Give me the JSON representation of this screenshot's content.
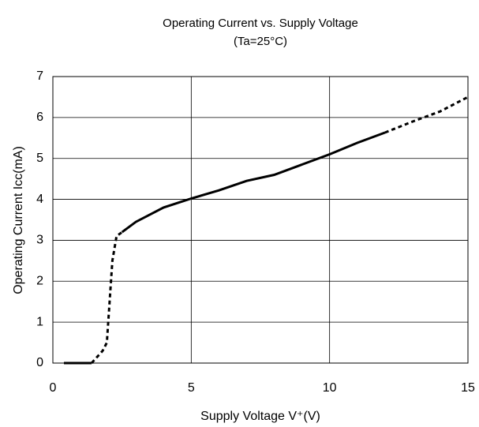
{
  "chart_data": {
    "type": "line",
    "title": "Operating Current vs. Supply Voltage",
    "subtitle": "(Ta=25°C)",
    "x_label": "Supply Voltage  V⁺(V)",
    "y_label": "Operating Current  Icc(mA)",
    "xlim": [
      0,
      15
    ],
    "xticks": [
      0,
      5,
      10,
      15
    ],
    "ylim": [
      0,
      7
    ],
    "yticks": [
      0,
      1,
      2,
      3,
      4,
      5,
      6,
      7
    ],
    "grid": true,
    "series": [
      {
        "color": "#000000",
        "dashed": false,
        "x": [
          0.4,
          1.4
        ],
        "values": [
          0,
          0
        ]
      },
      {
        "color": "#000000",
        "dashed": true,
        "x": [
          1.4,
          1.6,
          1.8,
          1.95,
          2.05,
          2.15,
          2.3,
          2.5
        ],
        "values": [
          0,
          0.15,
          0.3,
          0.5,
          1.5,
          2.5,
          3.1,
          3.2
        ]
      },
      {
        "color": "#000000",
        "dashed": false,
        "x": [
          2.5,
          3,
          4,
          5,
          6,
          7,
          8,
          9,
          10,
          11,
          12
        ],
        "values": [
          3.2,
          3.45,
          3.8,
          4.02,
          4.22,
          4.45,
          4.6,
          4.85,
          5.1,
          5.38,
          5.63
        ]
      },
      {
        "color": "#000000",
        "dashed": true,
        "x": [
          12,
          13,
          14,
          15
        ],
        "values": [
          5.63,
          5.9,
          6.15,
          6.5
        ]
      }
    ]
  }
}
